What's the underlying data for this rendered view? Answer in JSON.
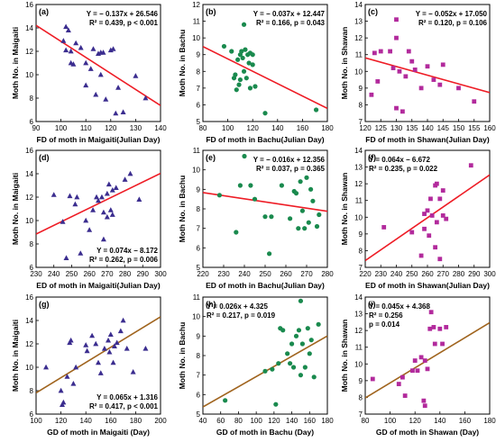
{
  "chart_data": [
    {
      "panel_label": "(a)",
      "type": "scatter",
      "xlabel": "FD of moth in Maigaiti(Julian Day)",
      "ylabel": "Moth No. in Maigaiti",
      "xlim": [
        90,
        140
      ],
      "ylim": [
        6,
        16
      ],
      "xticks": [
        90,
        100,
        110,
        120,
        130,
        140
      ],
      "yticks": [
        6,
        8,
        10,
        12,
        14,
        16
      ],
      "marker": "triangle",
      "marker_color": "#3b2d8f",
      "line_color": "#ee1c25",
      "fit": {
        "slope": -0.137,
        "intercept": 26.546
      },
      "eq_lines": [
        "Y = − 0.137x + 26.546",
        "R² = 0.439, p < 0.001"
      ],
      "eq_position": "top-right",
      "x": [
        101,
        102,
        102,
        103,
        104,
        104,
        105,
        106,
        108,
        110,
        110,
        112,
        113,
        114,
        115,
        116,
        116,
        117,
        118,
        120,
        121,
        122,
        123,
        125,
        130,
        134
      ],
      "y": [
        12.9,
        14.1,
        12.1,
        13.8,
        12.0,
        11.0,
        10.9,
        12.7,
        12.3,
        11.0,
        9.1,
        10.5,
        12.2,
        8.3,
        11.8,
        10.0,
        11.9,
        11.9,
        7.9,
        12.1,
        12.2,
        6.7,
        8.9,
        6.8,
        9.9,
        8.0
      ]
    },
    {
      "panel_label": "(b)",
      "type": "scatter",
      "xlabel": "FD of moth in Bachu(Julian Day)",
      "ylabel": "Moth No. in Bachu",
      "xlim": [
        80,
        180
      ],
      "ylim": [
        5,
        12
      ],
      "xticks": [
        80,
        100,
        120,
        140,
        160,
        180
      ],
      "yticks": [
        5,
        6,
        7,
        8,
        9,
        10,
        11,
        12
      ],
      "marker": "circle",
      "marker_color": "#1a8a4e",
      "line_color": "#ee1c25",
      "fit": {
        "slope": -0.037,
        "intercept": 12.447
      },
      "eq_lines": [
        "Y = − 0.037x + 12.447",
        "R² = 0.166, p = 0.043"
      ],
      "eq_position": "top-right",
      "x": [
        97,
        103,
        105,
        106,
        107,
        108,
        109,
        110,
        110,
        111,
        112,
        113,
        113,
        114,
        115,
        116,
        117,
        118,
        118,
        120,
        120,
        122,
        130,
        171
      ],
      "y": [
        9.5,
        9.2,
        7.6,
        7.8,
        6.9,
        8.7,
        7.2,
        9.0,
        7.5,
        9.2,
        8.8,
        8.0,
        10.8,
        9.3,
        7.6,
        9.0,
        8.5,
        9.1,
        7.0,
        8.4,
        9.0,
        7.1,
        5.5,
        5.7
      ]
    },
    {
      "panel_label": "(c)",
      "type": "scatter",
      "xlabel": "FD of moth in Shawan(Julian Day)",
      "ylabel": "Moth No. in Shawan",
      "xlim": [
        120,
        160
      ],
      "ylim": [
        7,
        14
      ],
      "xticks": [
        120,
        125,
        130,
        135,
        140,
        145,
        150,
        155,
        160
      ],
      "yticks": [
        7,
        8,
        9,
        10,
        11,
        12,
        13,
        14
      ],
      "marker": "square",
      "marker_color": "#b22a9c",
      "line_color": "#ee1c25",
      "fit": {
        "slope": -0.052,
        "intercept": 17.05
      },
      "eq_lines": [
        "Y = − 0.052x + 17.050",
        "R² = 0.120, p = 0.106"
      ],
      "eq_position": "top-right",
      "x": [
        122,
        123,
        124,
        125,
        128,
        129,
        130,
        130,
        130,
        131,
        132,
        133,
        134,
        135,
        136,
        138,
        140,
        142,
        144,
        145,
        150,
        155
      ],
      "y": [
        8.6,
        11.1,
        9.4,
        11.2,
        11.2,
        10.2,
        13.1,
        12.0,
        7.8,
        10.0,
        7.6,
        9.7,
        11.2,
        10.6,
        10.1,
        9.0,
        10.3,
        9.5,
        9.2,
        10.4,
        9.0,
        8.2
      ]
    },
    {
      "panel_label": "(d)",
      "type": "scatter",
      "xlabel": "ED of moth in Maigaiti(Julian Day)",
      "ylabel": "Moth No. in Maigaiti",
      "xlim": [
        230,
        300
      ],
      "ylim": [
        6,
        16
      ],
      "xticks": [
        230,
        240,
        250,
        260,
        270,
        280,
        290,
        300
      ],
      "yticks": [
        6,
        8,
        10,
        12,
        14,
        16
      ],
      "marker": "triangle",
      "marker_color": "#3b2d8f",
      "line_color": "#ee1c25",
      "fit": {
        "slope": 0.074,
        "intercept": -8.172
      },
      "eq_lines": [
        "Y = 0.074x − 8.172",
        "R² = 0.262, p = 0.006"
      ],
      "eq_position": "bottom-right",
      "x": [
        240,
        245,
        247,
        249,
        252,
        253,
        255,
        258,
        260,
        262,
        264,
        265,
        267,
        268,
        268,
        270,
        270,
        271,
        272,
        273,
        273,
        275,
        280,
        283,
        288
      ],
      "y": [
        12.2,
        9.9,
        6.8,
        12.1,
        11.4,
        12.0,
        7.2,
        10.0,
        9.2,
        10.9,
        12.0,
        11.7,
        12.0,
        8.4,
        10.7,
        12.3,
        10.3,
        13.1,
        10.9,
        12.6,
        10.5,
        12.8,
        13.5,
        14.0,
        11.8
      ]
    },
    {
      "panel_label": "(e)",
      "type": "scatter",
      "xlabel": "ED of moth in Bachu(Julian Day)",
      "ylabel": "Moth No. in Bachu",
      "xlim": [
        220,
        280
      ],
      "ylim": [
        5,
        11
      ],
      "xticks": [
        220,
        230,
        240,
        250,
        260,
        270,
        280
      ],
      "yticks": [
        5,
        6,
        7,
        8,
        9,
        10,
        11
      ],
      "marker": "circle",
      "marker_color": "#1a8a4e",
      "line_color": "#ee1c25",
      "fit": {
        "slope": -0.016,
        "intercept": 12.356
      },
      "eq_lines": [
        "Y = − 0.016x + 12.356",
        "R² = 0.037, p = 0.365"
      ],
      "eq_position": "top-right",
      "x": [
        228,
        236,
        238,
        240,
        243,
        245,
        250,
        252,
        253,
        258,
        262,
        264,
        265,
        266,
        267,
        268,
        269,
        270,
        271,
        272,
        273,
        275,
        276
      ],
      "y": [
        8.7,
        6.8,
        9.2,
        10.7,
        9.2,
        8.5,
        7.6,
        5.7,
        7.6,
        9.2,
        7.5,
        8.9,
        8.8,
        7.0,
        9.4,
        7.9,
        7.0,
        9.6,
        7.3,
        9.0,
        8.4,
        7.1,
        7.7
      ]
    },
    {
      "panel_label": "(f)",
      "type": "scatter",
      "xlabel": "ED of moth in Shawan(Julian Day)",
      "ylabel": "Moth No. in Shawan",
      "xlim": [
        220,
        300
      ],
      "ylim": [
        7,
        14
      ],
      "xticks": [
        220,
        230,
        240,
        250,
        260,
        270,
        280,
        290,
        300
      ],
      "yticks": [
        7,
        8,
        9,
        10,
        11,
        12,
        13,
        14
      ],
      "marker": "square",
      "marker_color": "#b22a9c",
      "line_color": "#ee1c25",
      "fit": {
        "slope": 0.064,
        "intercept": -6.672
      },
      "eq_lines": [
        "Y = 0.064x − 6.672",
        "R² = 0.235, p = 0.022"
      ],
      "eq_position": "top-left",
      "x": [
        232,
        250,
        256,
        258,
        258,
        260,
        261,
        262,
        263,
        265,
        265,
        266,
        266,
        268,
        268,
        270,
        270,
        272,
        288
      ],
      "y": [
        9.4,
        9.1,
        7.7,
        10.2,
        9.3,
        10.4,
        8.9,
        11.1,
        10.1,
        11.9,
        8.2,
        9.7,
        12.0,
        11.1,
        7.5,
        11.6,
        10.1,
        9.9,
        13.1
      ]
    },
    {
      "panel_label": "(g)",
      "type": "scatter",
      "xlabel": "GD of moth in Maigaiti (Day)",
      "ylabel": "Moth No. in Maigaiti",
      "xlim": [
        100,
        200
      ],
      "ylim": [
        6,
        16
      ],
      "xticks": [
        100,
        120,
        140,
        160,
        180,
        200
      ],
      "yticks": [
        6,
        8,
        10,
        12,
        14,
        16
      ],
      "marker": "triangle",
      "marker_color": "#3b2d8f",
      "line_color": "#a0641e",
      "fit": {
        "slope": 0.065,
        "intercept": 1.316
      },
      "eq_lines": [
        "Y = 0.065x + 1.316",
        "R² = 0.417, p < 0.001"
      ],
      "eq_position": "bottom-right",
      "x": [
        108,
        120,
        121,
        122,
        125,
        127,
        128,
        130,
        132,
        140,
        141,
        145,
        148,
        150,
        152,
        155,
        158,
        159,
        160,
        162,
        163,
        165,
        168,
        170,
        173,
        178,
        188
      ],
      "y": [
        10.0,
        8.0,
        6.8,
        7.0,
        9.2,
        12.1,
        12.3,
        8.6,
        10.0,
        11.9,
        11.4,
        12.7,
        12.0,
        10.4,
        9.5,
        11.6,
        12.3,
        11.3,
        12.8,
        10.4,
        11.8,
        12.1,
        13.1,
        14.0,
        11.6,
        9.6,
        11.6
      ]
    },
    {
      "panel_label": "(h)",
      "type": "scatter",
      "xlabel": "GD of moth in Bachu (Day)",
      "ylabel": "Moth No. in Bachu",
      "xlim": [
        40,
        180
      ],
      "ylim": [
        5,
        11
      ],
      "xticks": [
        40,
        60,
        80,
        100,
        120,
        140,
        160,
        180
      ],
      "yticks": [
        5,
        6,
        7,
        8,
        9,
        10,
        11
      ],
      "marker": "circle",
      "marker_color": "#1a8a4e",
      "line_color": "#a0641e",
      "fit": {
        "slope": 0.026,
        "intercept": 4.325
      },
      "eq_lines": [
        "Y = 0.026x + 4.325",
        "R² = 0.217, p = 0.019"
      ],
      "eq_position": "top-left",
      "x": [
        65,
        110,
        118,
        122,
        125,
        127,
        130,
        135,
        138,
        140,
        142,
        145,
        148,
        150,
        150,
        152,
        155,
        158,
        160,
        162,
        165,
        170
      ],
      "y": [
        5.7,
        7.2,
        7.3,
        5.5,
        7.6,
        9.4,
        9.3,
        8.1,
        7.6,
        8.6,
        7.4,
        9.0,
        9.3,
        10.8,
        7.0,
        8.6,
        7.4,
        9.4,
        8.1,
        8.8,
        6.9,
        9.6
      ]
    },
    {
      "panel_label": "(i)",
      "type": "scatter",
      "xlabel": "GD of moth in Shawan (Day)",
      "ylabel": "Moth No. in Shawan",
      "xlim": [
        80,
        180
      ],
      "ylim": [
        7,
        14
      ],
      "xticks": [
        80,
        100,
        120,
        140,
        160,
        180
      ],
      "yticks": [
        7,
        8,
        9,
        10,
        11,
        12,
        13,
        14
      ],
      "marker": "square",
      "marker_color": "#b22a9c",
      "line_color": "#a0641e",
      "fit": {
        "slope": 0.045,
        "intercept": 4.368
      },
      "eq_lines": [
        "Y = 0.045x + 4.368",
        "R² = 0.256",
        "p = 0.014"
      ],
      "eq_position": "top-left",
      "x": [
        86,
        107,
        110,
        112,
        118,
        120,
        122,
        125,
        127,
        128,
        128,
        130,
        132,
        133,
        135,
        136,
        140,
        142,
        145
      ],
      "y": [
        9.1,
        8.8,
        9.2,
        8.1,
        9.6,
        10.2,
        9.6,
        10.4,
        7.8,
        10.2,
        7.5,
        9.7,
        12.1,
        13.1,
        12.2,
        11.2,
        12.1,
        11.2,
        12.2
      ]
    }
  ]
}
